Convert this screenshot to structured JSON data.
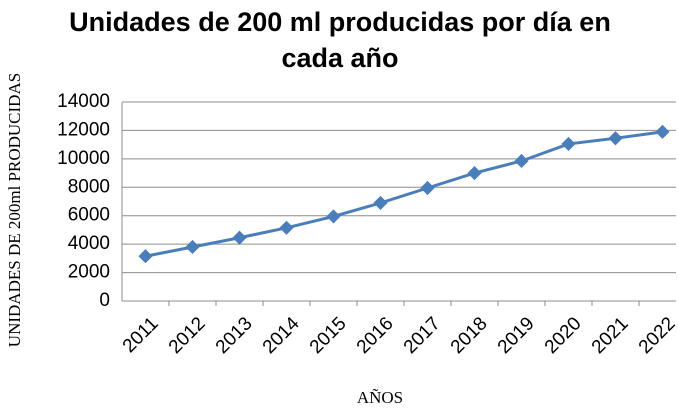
{
  "chart_data": {
    "type": "line",
    "title": "Unidades de 200 ml producidas por día en cada año",
    "y_label": "UNIDADES DE 200ml PRODUCIDAS",
    "x_label": "AÑOS",
    "categories": [
      "2011",
      "2012",
      "2013",
      "2014",
      "2015",
      "2016",
      "2017",
      "2018",
      "2019",
      "2020",
      "2021",
      "2022"
    ],
    "values": [
      3150,
      3800,
      4450,
      5150,
      5950,
      6900,
      7950,
      9000,
      9850,
      11050,
      11450,
      11900
    ],
    "color": "#4a7ebb",
    "ylim": [
      0,
      14000
    ],
    "yticks": [
      0,
      2000,
      4000,
      6000,
      8000,
      10000,
      12000,
      14000
    ],
    "grid": true
  }
}
